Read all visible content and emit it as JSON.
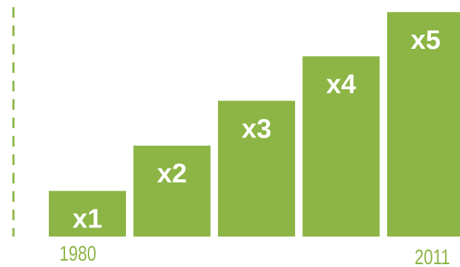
{
  "chart_data": {
    "type": "bar",
    "categories": [
      "x1",
      "x2",
      "x3",
      "x4",
      "x5"
    ],
    "values": [
      1,
      2,
      3,
      4,
      5
    ],
    "data_labels": [
      "x1",
      "x2",
      "x3",
      "x4",
      "x5"
    ],
    "x_tick_labels": {
      "start": "1980",
      "end": "2011"
    },
    "ylim": [
      0,
      5
    ],
    "grid": false,
    "legend": "none"
  },
  "colors": {
    "bar": "#8cb545",
    "bar_label": "#ffffff",
    "tick_label": "#8cb545",
    "axis_dash": "#8cb545"
  }
}
